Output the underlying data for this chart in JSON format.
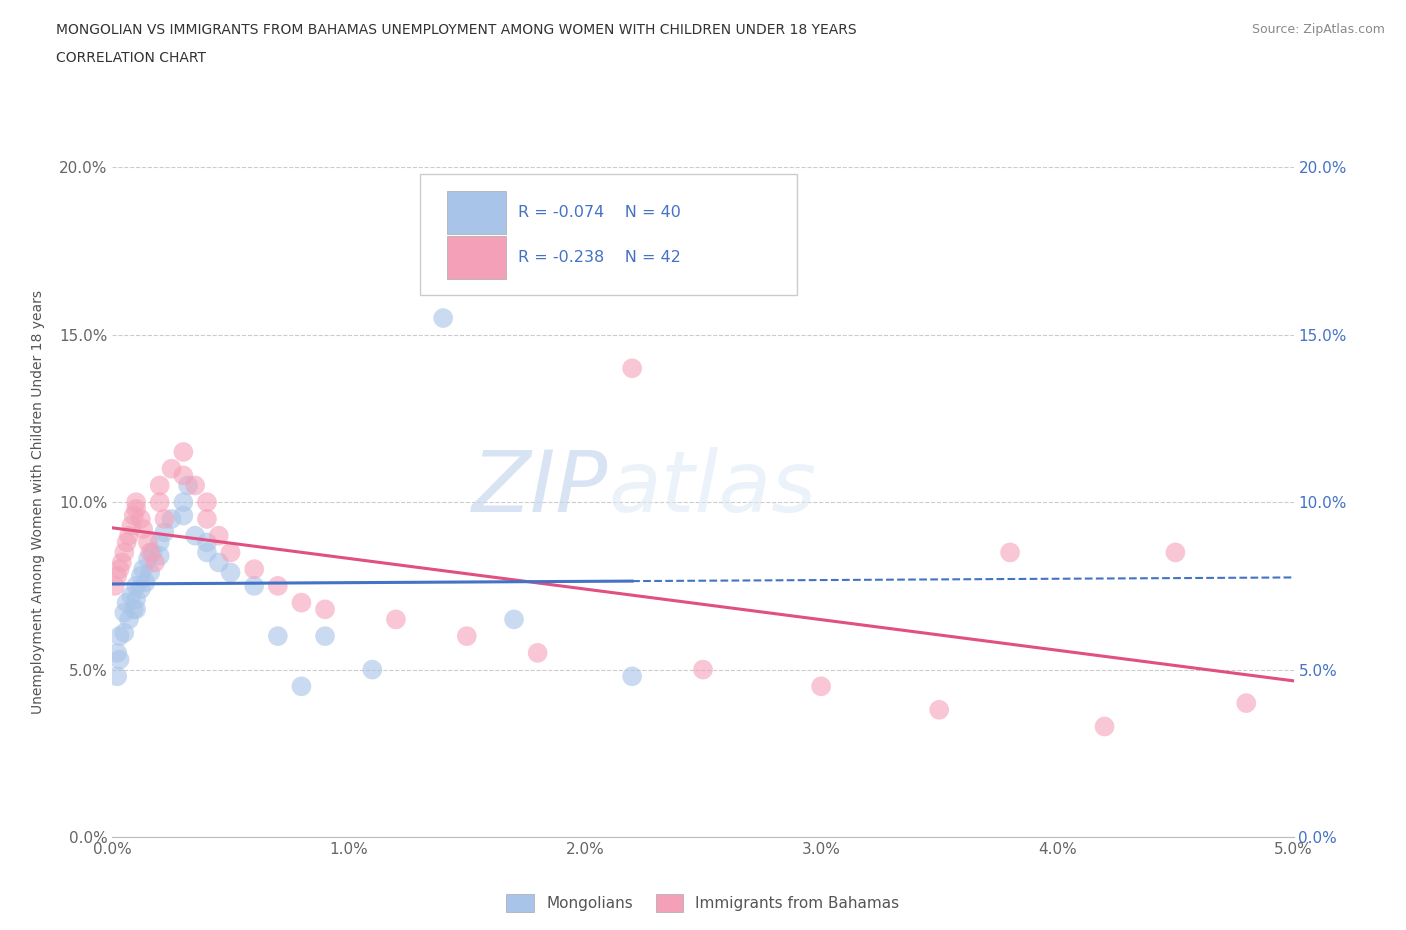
{
  "title_line1": "MONGOLIAN VS IMMIGRANTS FROM BAHAMAS UNEMPLOYMENT AMONG WOMEN WITH CHILDREN UNDER 18 YEARS",
  "title_line2": "CORRELATION CHART",
  "source_text": "Source: ZipAtlas.com",
  "ylabel": "Unemployment Among Women with Children Under 18 years",
  "watermark_zip": "ZIP",
  "watermark_atlas": "atlas",
  "legend_label1": "Mongolians",
  "legend_label2": "Immigrants from Bahamas",
  "R1": -0.074,
  "N1": 40,
  "R2": -0.238,
  "N2": 42,
  "color_blue": "#a8c4e8",
  "color_pink": "#f4a0b8",
  "color_blue_line": "#4472c4",
  "color_pink_line": "#e05080",
  "color_blue_text": "#4472c4",
  "xlim": [
    0.0,
    0.05
  ],
  "ylim": [
    0.0,
    0.2
  ],
  "x_ticks": [
    0.0,
    0.01,
    0.02,
    0.03,
    0.04,
    0.05
  ],
  "y_ticks": [
    0.0,
    0.05,
    0.1,
    0.15,
    0.2
  ],
  "mongolian_x": [
    0.0002,
    0.0002,
    0.0003,
    0.0003,
    0.0005,
    0.0005,
    0.0006,
    0.0007,
    0.0008,
    0.0009,
    0.001,
    0.001,
    0.001,
    0.0012,
    0.0012,
    0.0013,
    0.0014,
    0.0015,
    0.0016,
    0.0017,
    0.002,
    0.002,
    0.0022,
    0.0025,
    0.003,
    0.003,
    0.0032,
    0.0035,
    0.004,
    0.004,
    0.0045,
    0.005,
    0.006,
    0.007,
    0.008,
    0.009,
    0.011,
    0.014,
    0.017,
    0.022
  ],
  "mongolian_y": [
    0.055,
    0.048,
    0.06,
    0.053,
    0.067,
    0.061,
    0.07,
    0.065,
    0.072,
    0.068,
    0.075,
    0.071,
    0.068,
    0.078,
    0.074,
    0.08,
    0.076,
    0.083,
    0.079,
    0.085,
    0.088,
    0.084,
    0.091,
    0.095,
    0.1,
    0.096,
    0.105,
    0.09,
    0.088,
    0.085,
    0.082,
    0.079,
    0.075,
    0.06,
    0.045,
    0.06,
    0.05,
    0.155,
    0.065,
    0.048
  ],
  "bahamas_x": [
    0.0001,
    0.0002,
    0.0003,
    0.0004,
    0.0005,
    0.0006,
    0.0007,
    0.0008,
    0.0009,
    0.001,
    0.001,
    0.0012,
    0.0013,
    0.0015,
    0.0016,
    0.0018,
    0.002,
    0.002,
    0.0022,
    0.0025,
    0.003,
    0.003,
    0.0035,
    0.004,
    0.004,
    0.0045,
    0.005,
    0.006,
    0.007,
    0.008,
    0.009,
    0.012,
    0.015,
    0.018,
    0.022,
    0.025,
    0.03,
    0.035,
    0.038,
    0.042,
    0.045,
    0.048
  ],
  "bahamas_y": [
    0.075,
    0.078,
    0.08,
    0.082,
    0.085,
    0.088,
    0.09,
    0.093,
    0.096,
    0.098,
    0.1,
    0.095,
    0.092,
    0.088,
    0.085,
    0.082,
    0.105,
    0.1,
    0.095,
    0.11,
    0.115,
    0.108,
    0.105,
    0.1,
    0.095,
    0.09,
    0.085,
    0.08,
    0.075,
    0.07,
    0.068,
    0.065,
    0.06,
    0.055,
    0.14,
    0.05,
    0.045,
    0.038,
    0.085,
    0.033,
    0.085,
    0.04
  ]
}
